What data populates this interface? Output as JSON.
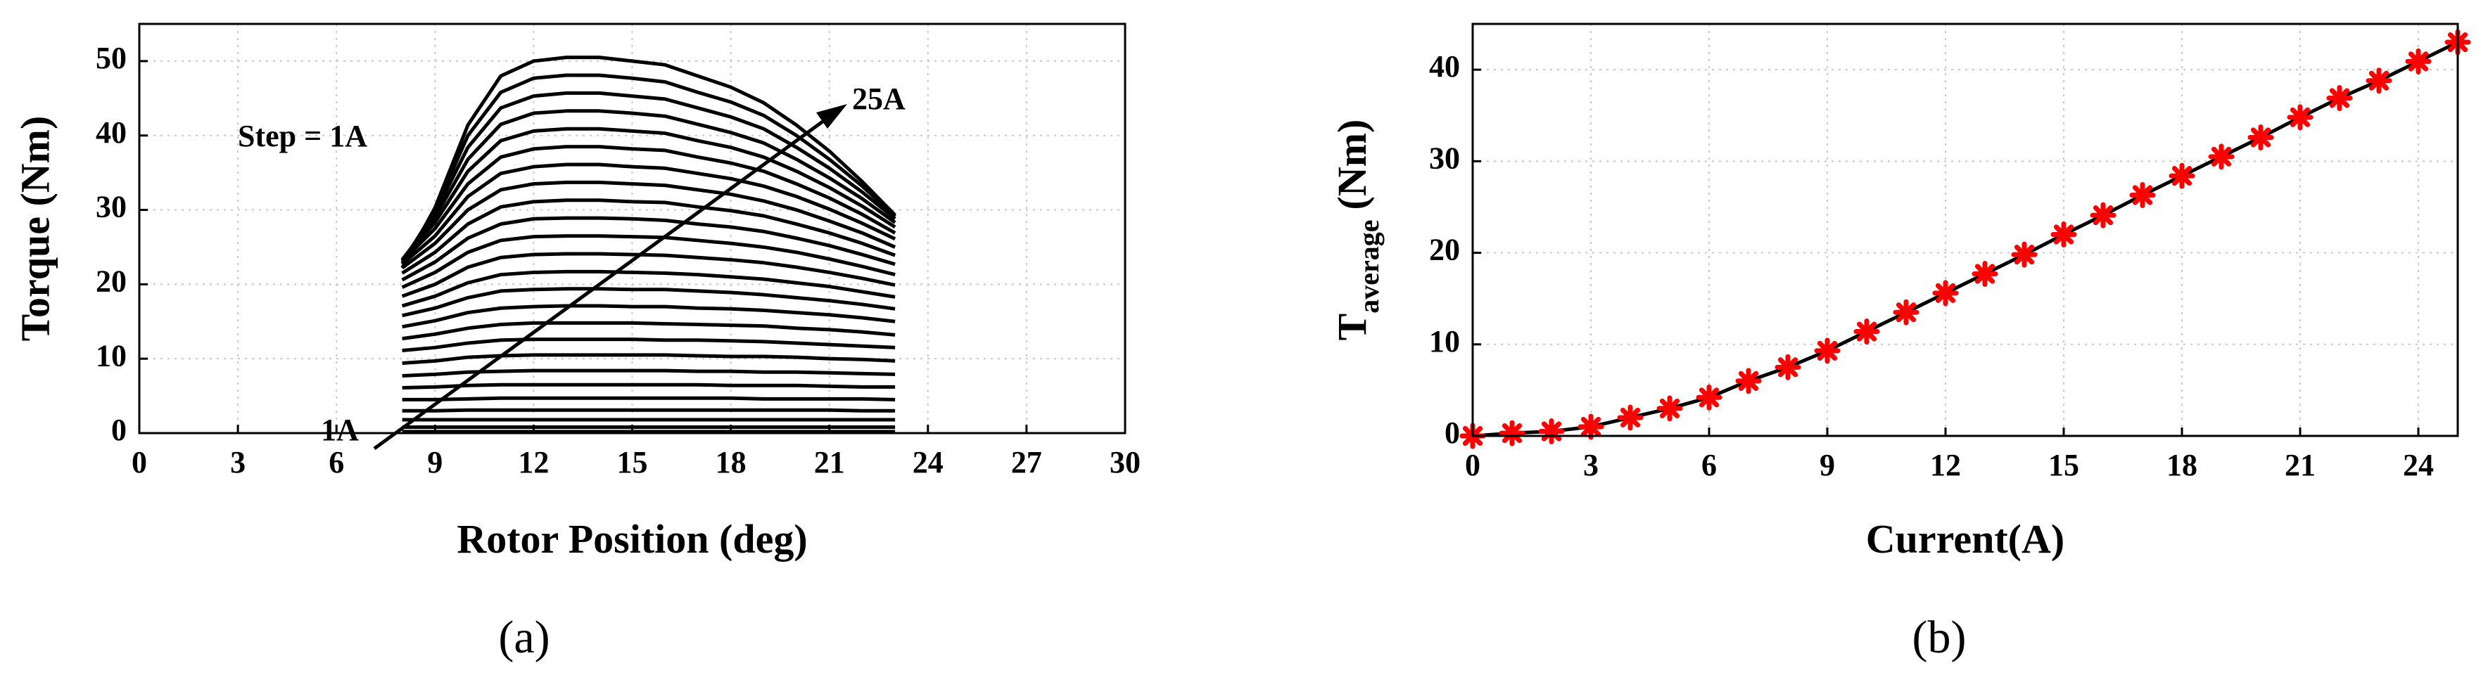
{
  "chart_data": [
    {
      "type": "line",
      "figure_label": "(a)",
      "x_label": "Rotor Position (deg)",
      "y_label": "Torque (Nm)",
      "xlim": [
        0,
        30
      ],
      "xticks": [
        0,
        3,
        6,
        9,
        12,
        15,
        18,
        21,
        24,
        27,
        30
      ],
      "ylim": [
        0,
        55
      ],
      "yticks": [
        0,
        10,
        20,
        30,
        40,
        50
      ],
      "grid": true,
      "annotations": [
        "Step = 1A",
        "25A",
        "1A"
      ],
      "x": [
        8,
        9,
        10,
        11,
        12,
        13,
        14,
        15,
        16,
        17,
        18,
        19,
        20,
        21,
        22,
        23
      ],
      "series": [
        {
          "color": "#000000",
          "values": [
            0.2,
            0.2,
            0.2,
            0.2,
            0.2,
            0.2,
            0.2,
            0.2,
            0.2,
            0.2,
            0.2,
            0.2,
            0.2,
            0.2,
            0.2,
            0.2
          ]
        },
        {
          "color": "#000000",
          "values": [
            0.8,
            0.8,
            0.8,
            0.8,
            0.8,
            0.8,
            0.8,
            0.8,
            0.8,
            0.8,
            0.8,
            0.8,
            0.8,
            0.8,
            0.8,
            0.8
          ]
        },
        {
          "color": "#000000",
          "values": [
            1.8,
            1.8,
            1.8,
            1.8,
            1.8,
            1.8,
            1.8,
            1.8,
            1.8,
            1.8,
            1.8,
            1.8,
            1.8,
            1.8,
            1.8,
            1.8
          ]
        },
        {
          "color": "#000000",
          "values": [
            3.0,
            3.0,
            3.1,
            3.1,
            3.1,
            3.1,
            3.1,
            3.1,
            3.1,
            3.1,
            3.1,
            3.1,
            3.1,
            3.1,
            3.0,
            3.0
          ]
        },
        {
          "color": "#000000",
          "values": [
            4.5,
            4.5,
            4.6,
            4.7,
            4.7,
            4.7,
            4.7,
            4.7,
            4.7,
            4.7,
            4.7,
            4.6,
            4.6,
            4.6,
            4.6,
            4.5
          ]
        },
        {
          "color": "#000000",
          "values": [
            6.1,
            6.2,
            6.4,
            6.5,
            6.5,
            6.5,
            6.5,
            6.5,
            6.5,
            6.5,
            6.4,
            6.4,
            6.4,
            6.3,
            6.2,
            6.2
          ]
        },
        {
          "color": "#000000",
          "values": [
            7.7,
            7.9,
            8.2,
            8.3,
            8.4,
            8.4,
            8.4,
            8.4,
            8.4,
            8.3,
            8.3,
            8.2,
            8.2,
            8.1,
            8.0,
            7.9
          ]
        },
        {
          "color": "#000000",
          "values": [
            9.4,
            9.7,
            10.2,
            10.4,
            10.5,
            10.5,
            10.5,
            10.5,
            10.5,
            10.4,
            10.3,
            10.3,
            10.2,
            10.0,
            9.9,
            9.7
          ]
        },
        {
          "color": "#000000",
          "values": [
            11.1,
            11.5,
            12.1,
            12.5,
            12.6,
            12.6,
            12.6,
            12.6,
            12.5,
            12.5,
            12.4,
            12.3,
            12.1,
            11.9,
            11.7,
            11.5
          ]
        },
        {
          "color": "#000000",
          "values": [
            12.7,
            13.3,
            14.1,
            14.6,
            14.8,
            14.8,
            14.8,
            14.8,
            14.7,
            14.6,
            14.5,
            14.4,
            14.1,
            13.9,
            13.6,
            13.2
          ]
        },
        {
          "color": "#000000",
          "values": [
            14.3,
            15.1,
            16.2,
            16.8,
            17.0,
            17.1,
            17.1,
            17.0,
            17.0,
            16.8,
            16.7,
            16.5,
            16.2,
            15.9,
            15.5,
            15.0
          ]
        },
        {
          "color": "#000000",
          "values": [
            15.8,
            16.8,
            18.2,
            19.1,
            19.3,
            19.4,
            19.4,
            19.3,
            19.3,
            19.1,
            18.9,
            18.6,
            18.2,
            17.8,
            17.3,
            16.7
          ]
        },
        {
          "color": "#000000",
          "values": [
            17.1,
            18.4,
            20.2,
            21.3,
            21.6,
            21.7,
            21.7,
            21.6,
            21.5,
            21.3,
            21.0,
            20.7,
            20.2,
            19.7,
            19.0,
            18.3
          ]
        },
        {
          "color": "#000000",
          "values": [
            18.4,
            20.0,
            22.3,
            23.6,
            24.0,
            24.1,
            24.1,
            24.0,
            23.9,
            23.6,
            23.3,
            22.9,
            22.3,
            21.6,
            20.8,
            19.9
          ]
        },
        {
          "color": "#000000",
          "values": [
            19.6,
            21.6,
            24.3,
            25.9,
            26.4,
            26.5,
            26.5,
            26.4,
            26.3,
            25.9,
            25.5,
            25.0,
            24.3,
            23.4,
            22.4,
            21.3
          ]
        },
        {
          "color": "#000000",
          "values": [
            20.6,
            23.0,
            26.2,
            28.1,
            28.8,
            28.9,
            28.9,
            28.8,
            28.6,
            28.1,
            27.7,
            27.1,
            26.2,
            25.2,
            24.0,
            22.7
          ]
        },
        {
          "color": "#000000",
          "values": [
            21.5,
            24.3,
            28.1,
            30.4,
            31.1,
            31.3,
            31.3,
            31.1,
            31.0,
            30.4,
            29.9,
            29.2,
            28.1,
            26.9,
            25.5,
            23.9
          ]
        },
        {
          "color": "#000000",
          "values": [
            22.2,
            25.5,
            30.0,
            32.7,
            33.5,
            33.7,
            33.7,
            33.5,
            33.3,
            32.7,
            32.1,
            31.2,
            30.0,
            28.5,
            26.9,
            25.0
          ]
        },
        {
          "color": "#000000",
          "values": [
            22.7,
            26.5,
            31.8,
            34.9,
            35.8,
            36.1,
            36.1,
            35.8,
            35.6,
            34.9,
            34.2,
            33.2,
            31.8,
            30.1,
            28.2,
            26.1
          ]
        },
        {
          "color": "#000000",
          "values": [
            23.1,
            27.5,
            33.5,
            37.1,
            38.2,
            38.5,
            38.5,
            38.2,
            38.0,
            37.1,
            36.3,
            35.2,
            33.5,
            31.6,
            29.4,
            26.9
          ]
        },
        {
          "color": "#000000",
          "values": [
            23.3,
            28.3,
            35.2,
            39.3,
            40.6,
            40.9,
            40.9,
            40.6,
            40.3,
            39.3,
            38.4,
            37.1,
            35.2,
            33.0,
            30.5,
            27.7
          ]
        },
        {
          "color": "#000000",
          "values": [
            23.3,
            29.0,
            36.8,
            41.5,
            43.0,
            43.3,
            43.3,
            43.0,
            42.6,
            41.5,
            40.4,
            39.0,
            36.8,
            34.3,
            31.5,
            28.3
          ]
        },
        {
          "color": "#000000",
          "values": [
            23.1,
            29.6,
            38.4,
            43.7,
            45.3,
            45.7,
            45.7,
            45.3,
            44.9,
            43.7,
            42.5,
            40.9,
            38.4,
            35.6,
            32.4,
            28.8
          ]
        },
        {
          "color": "#000000",
          "values": [
            22.8,
            30.0,
            40.0,
            45.8,
            47.7,
            48.1,
            48.1,
            47.7,
            47.2,
            45.8,
            44.5,
            42.7,
            40.0,
            36.8,
            33.2,
            29.1
          ]
        },
        {
          "color": "#000000",
          "values": [
            22.2,
            30.3,
            41.4,
            48.0,
            50.0,
            50.5,
            50.5,
            50.0,
            49.5,
            48.0,
            46.5,
            44.4,
            41.4,
            37.9,
            33.8,
            29.3
          ]
        }
      ]
    },
    {
      "type": "line",
      "figure_label": "(b)",
      "x_label": "Current(A)",
      "y_label": {
        "main": "T",
        "sub": "average",
        "unit": "(Nm)"
      },
      "xlim": [
        0,
        25
      ],
      "xticks": [
        0,
        3,
        6,
        9,
        12,
        15,
        18,
        21,
        24
      ],
      "ylim": [
        0,
        45
      ],
      "yticks": [
        0,
        10,
        20,
        30,
        40
      ],
      "grid": true,
      "x": [
        0,
        1,
        2,
        3,
        4,
        5,
        6,
        7,
        8,
        9,
        10,
        11,
        12,
        13,
        14,
        15,
        16,
        17,
        18,
        19,
        20,
        21,
        22,
        23,
        24,
        25
      ],
      "series": [
        {
          "color": "#000000",
          "marker": "asterisk",
          "marker_color": "#ff0000",
          "values": [
            0,
            0.3,
            0.5,
            1,
            2,
            3,
            4.2,
            6,
            7.5,
            9.3,
            11.4,
            13.5,
            15.6,
            17.7,
            19.8,
            22,
            24.1,
            26.3,
            28.4,
            30.5,
            32.6,
            34.8,
            36.9,
            38.8,
            40.9,
            43
          ]
        }
      ]
    }
  ]
}
